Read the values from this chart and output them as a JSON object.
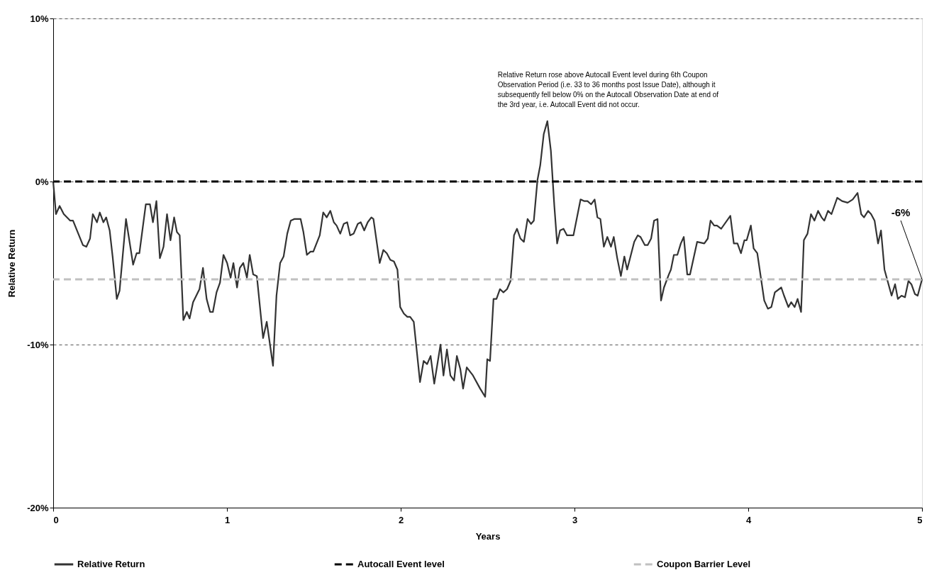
{
  "chart_data": {
    "type": "line",
    "xlabel": "Years",
    "ylabel": "Relative Return",
    "xlim": [
      0,
      5
    ],
    "xticks": [
      0,
      1,
      2,
      3,
      4,
      5
    ],
    "ylim": [
      -20,
      10
    ],
    "yticks": [
      {
        "value": -20,
        "label": "-20%"
      },
      {
        "value": -10,
        "label": "-10%"
      },
      {
        "value": 0,
        "label": "0%"
      },
      {
        "value": 10,
        "label": "10%"
      }
    ],
    "grid": "y",
    "legend": "bottom",
    "line_style": "solid",
    "series": [
      {
        "name": "Relative Return",
        "color": "#333333",
        "x": [
          0,
          0.016,
          0.037,
          0.061,
          0.098,
          0.114,
          0.171,
          0.191,
          0.212,
          0.228,
          0.252,
          0.268,
          0.289,
          0.305,
          0.325,
          0.342,
          0.366,
          0.382,
          0.419,
          0.46,
          0.48,
          0.496,
          0.533,
          0.557,
          0.574,
          0.594,
          0.614,
          0.635,
          0.655,
          0.675,
          0.696,
          0.712,
          0.728,
          0.749,
          0.769,
          0.785,
          0.805,
          0.842,
          0.862,
          0.883,
          0.903,
          0.919,
          0.94,
          0.96,
          0.98,
          1.001,
          1.021,
          1.037,
          1.058,
          1.074,
          1.094,
          1.115,
          1.131,
          1.151,
          1.172,
          1.208,
          1.229,
          1.265,
          1.285,
          1.306,
          1.326,
          1.347,
          1.367,
          1.387,
          1.424,
          1.44,
          1.46,
          1.481,
          1.497,
          1.534,
          1.554,
          1.574,
          1.595,
          1.615,
          1.631,
          1.652,
          1.672,
          1.692,
          1.709,
          1.729,
          1.753,
          1.77,
          1.79,
          1.81,
          1.831,
          1.843,
          1.863,
          1.879,
          1.9,
          1.92,
          1.94,
          1.961,
          1.981,
          1.997,
          2.018,
          2.038,
          2.054,
          2.075,
          2.111,
          2.132,
          2.152,
          2.172,
          2.193,
          2.229,
          2.246,
          2.266,
          2.286,
          2.307,
          2.323,
          2.343,
          2.359,
          2.38,
          2.416,
          2.457,
          2.486,
          2.498,
          2.514,
          2.534,
          2.551,
          2.571,
          2.591,
          2.612,
          2.632,
          2.652,
          2.669,
          2.689,
          2.709,
          2.73,
          2.75,
          2.766,
          2.787,
          2.803,
          2.823,
          2.844,
          2.864,
          2.884,
          2.9,
          2.917,
          2.937,
          2.957,
          2.994,
          3.035,
          3.055,
          3.075,
          3.096,
          3.116,
          3.132,
          3.149,
          3.169,
          3.189,
          3.21,
          3.226,
          3.246,
          3.267,
          3.287,
          3.303,
          3.344,
          3.364,
          3.38,
          3.405,
          3.421,
          3.441,
          3.458,
          3.478,
          3.498,
          3.515,
          3.543,
          3.555,
          3.572,
          3.592,
          3.612,
          3.629,
          3.649,
          3.665,
          3.706,
          3.747,
          3.767,
          3.783,
          3.804,
          3.82,
          3.844,
          3.897,
          3.917,
          3.938,
          3.958,
          3.978,
          3.991,
          4.015,
          4.031,
          4.052,
          4.092,
          4.113,
          4.133,
          4.153,
          4.19,
          4.206,
          4.231,
          4.247,
          4.267,
          4.284,
          4.304,
          4.32,
          4.341,
          4.361,
          4.381,
          4.402,
          4.422,
          4.438,
          4.459,
          4.479,
          4.512,
          4.54,
          4.572,
          4.601,
          4.629,
          4.65,
          4.666,
          4.69,
          4.707,
          4.727,
          4.747,
          4.764,
          4.784,
          4.825,
          4.845,
          4.861,
          4.882,
          4.902,
          4.922,
          4.939,
          4.959,
          4.975,
          5.0
        ],
        "values": [
          0,
          -2.0,
          -1.5,
          -2.0,
          -2.4,
          -2.4,
          -3.9,
          -4.0,
          -3.5,
          -2.0,
          -2.5,
          -1.9,
          -2.5,
          -2.2,
          -3.0,
          -4.6,
          -7.2,
          -6.7,
          -2.3,
          -5.1,
          -4.4,
          -4.4,
          -1.4,
          -1.4,
          -2.5,
          -1.2,
          -4.7,
          -4.0,
          -2.0,
          -3.6,
          -2.2,
          -3.1,
          -3.3,
          -8.5,
          -8.0,
          -8.4,
          -7.4,
          -6.6,
          -5.3,
          -7.2,
          -8.0,
          -8.0,
          -6.8,
          -6.2,
          -4.5,
          -5.0,
          -5.9,
          -5.0,
          -6.5,
          -5.3,
          -5.0,
          -5.9,
          -4.5,
          -5.7,
          -5.8,
          -9.6,
          -8.6,
          -11.3,
          -7.0,
          -5.0,
          -4.6,
          -3.2,
          -2.4,
          -2.3,
          -2.3,
          -3.1,
          -4.5,
          -4.3,
          -4.3,
          -3.3,
          -1.9,
          -2.2,
          -1.8,
          -2.5,
          -2.7,
          -3.2,
          -2.6,
          -2.5,
          -3.3,
          -3.2,
          -2.6,
          -2.5,
          -3.0,
          -2.5,
          -2.2,
          -2.3,
          -3.8,
          -5.0,
          -4.2,
          -4.4,
          -4.8,
          -4.9,
          -5.4,
          -7.7,
          -8.1,
          -8.3,
          -8.3,
          -8.6,
          -12.3,
          -11.0,
          -11.2,
          -10.7,
          -12.4,
          -10.0,
          -11.9,
          -10.3,
          -11.9,
          -12.2,
          -10.7,
          -11.5,
          -12.7,
          -11.4,
          -11.9,
          -12.7,
          -13.2,
          -10.9,
          -11.0,
          -7.2,
          -7.2,
          -6.6,
          -6.8,
          -6.6,
          -6.1,
          -3.3,
          -2.9,
          -3.5,
          -3.7,
          -2.3,
          -2.6,
          -2.4,
          0.1,
          1.0,
          2.9,
          3.7,
          1.9,
          -1.5,
          -3.8,
          -3.0,
          -2.9,
          -3.3,
          -3.3,
          -1.1,
          -1.2,
          -1.2,
          -1.4,
          -1.1,
          -2.2,
          -2.3,
          -4.0,
          -3.4,
          -4.0,
          -3.4,
          -4.7,
          -5.8,
          -4.6,
          -5.4,
          -3.7,
          -3.3,
          -3.4,
          -3.9,
          -3.9,
          -3.5,
          -2.4,
          -2.3,
          -7.3,
          -6.5,
          -5.7,
          -5.4,
          -4.5,
          -4.5,
          -3.8,
          -3.4,
          -5.7,
          -5.7,
          -3.7,
          -3.8,
          -3.5,
          -2.4,
          -2.7,
          -2.7,
          -2.9,
          -2.1,
          -3.8,
          -3.8,
          -4.4,
          -3.6,
          -3.6,
          -2.7,
          -4.1,
          -4.4,
          -7.3,
          -7.8,
          -7.7,
          -6.8,
          -6.5,
          -7.0,
          -7.7,
          -7.4,
          -7.7,
          -7.2,
          -8.0,
          -3.6,
          -3.2,
          -2.0,
          -2.4,
          -1.8,
          -2.2,
          -2.4,
          -1.8,
          -2.0,
          -1.0,
          -1.2,
          -1.3,
          -1.1,
          -0.7,
          -2.0,
          -2.2,
          -1.8,
          -2.0,
          -2.4,
          -3.8,
          -3.0,
          -5.4,
          -7.0,
          -6.3,
          -7.2,
          -7.0,
          -7.1,
          -6.1,
          -6.3,
          -6.9,
          -7.0,
          -6.0
        ]
      }
    ],
    "ref_lines": [
      {
        "axis": "y",
        "value": 0,
        "label": "Autocall Event level",
        "color": "#000000",
        "line_style": "dashed"
      },
      {
        "axis": "y",
        "value": -6,
        "label": "Coupon Barrier Level",
        "color": "#c0c0c0",
        "line_style": "dashed"
      }
    ],
    "annotations": [
      {
        "text": "Relative Return rose above Autocall Event level during 6th Coupon Observation Period (i.e. 33 to 36 months post Issue Date), although it subsequently fell below 0% on the Autocall Observation Date at end of the 3rd year, i.e. Autocall Event did not occur.",
        "x": 2.844,
        "y": 3.7
      },
      {
        "text": "-6%",
        "x": 5,
        "y": -6.0
      }
    ]
  }
}
